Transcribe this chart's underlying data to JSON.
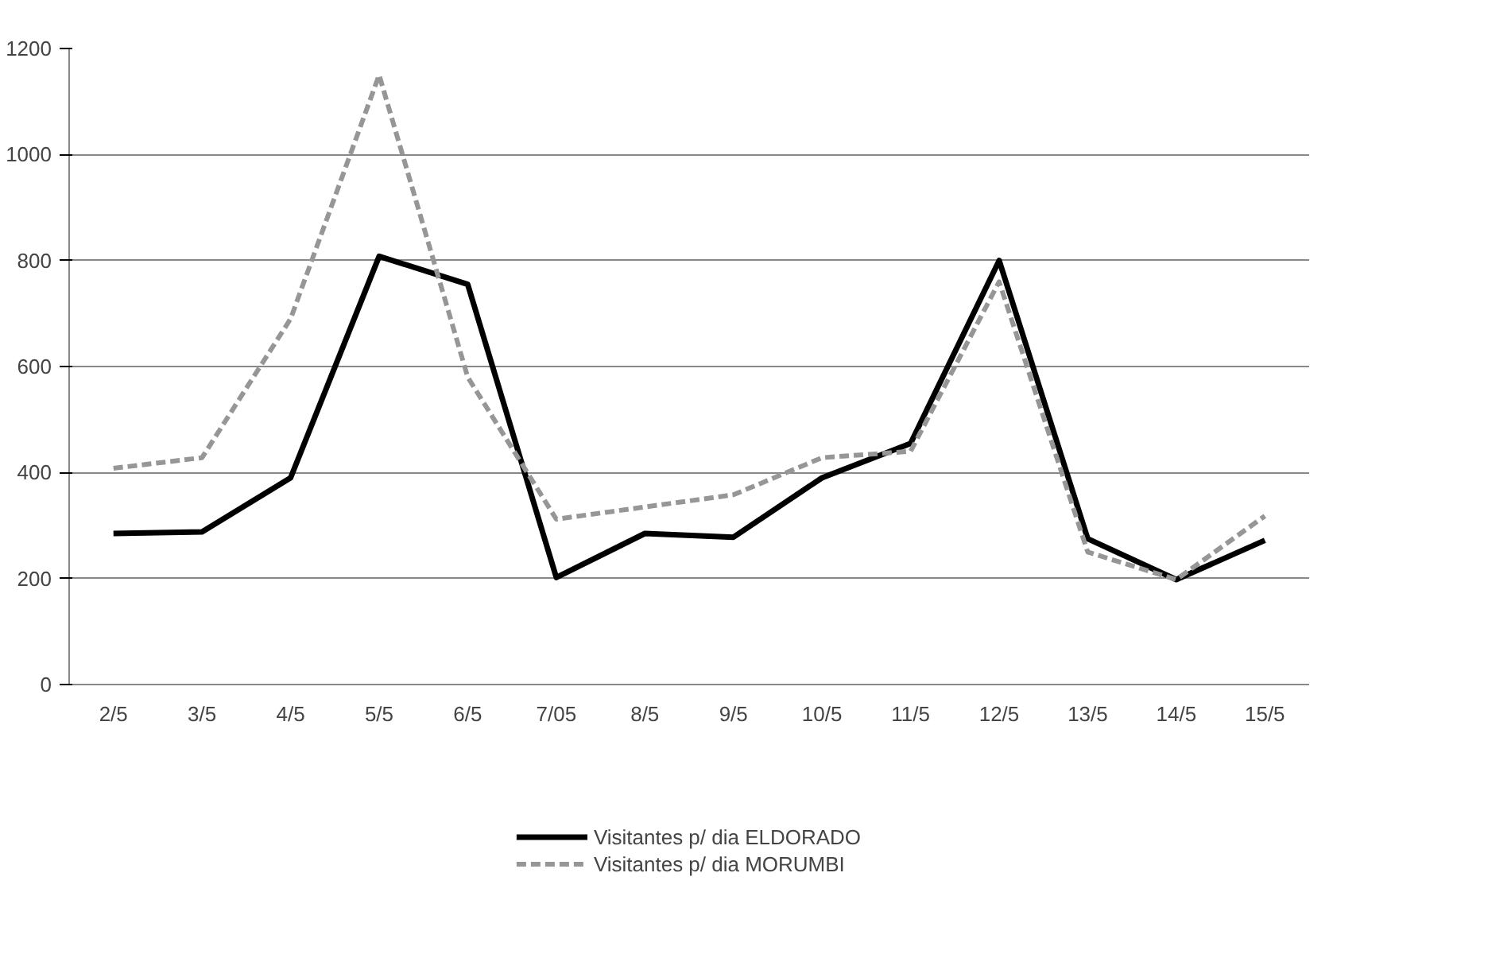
{
  "chart_data": {
    "type": "line",
    "categories": [
      "2/5",
      "3/5",
      "4/5",
      "5/5",
      "6/5",
      "7/05",
      "8/5",
      "9/5",
      "10/5",
      "11/5",
      "12/5",
      "13/5",
      "14/5",
      "15/5"
    ],
    "series": [
      {
        "name": "Visitantes p/ dia ELDORADO",
        "color": "#000000",
        "line_style": "solid",
        "values": [
          285,
          288,
          390,
          808,
          755,
          202,
          285,
          278,
          390,
          455,
          800,
          275,
          198,
          272
        ]
      },
      {
        "name": "Visitantes p/ dia MORUMBI",
        "color": "#969696",
        "line_style": "dashed",
        "values": [
          408,
          428,
          690,
          1150,
          580,
          312,
          335,
          358,
          428,
          440,
          760,
          250,
          198,
          318
        ]
      }
    ],
    "ylim": [
      0,
      1200
    ],
    "yticks": [
      0,
      200,
      400,
      600,
      800,
      1000,
      1200
    ],
    "grid": "y",
    "legend": "bottom",
    "marker": "none"
  }
}
